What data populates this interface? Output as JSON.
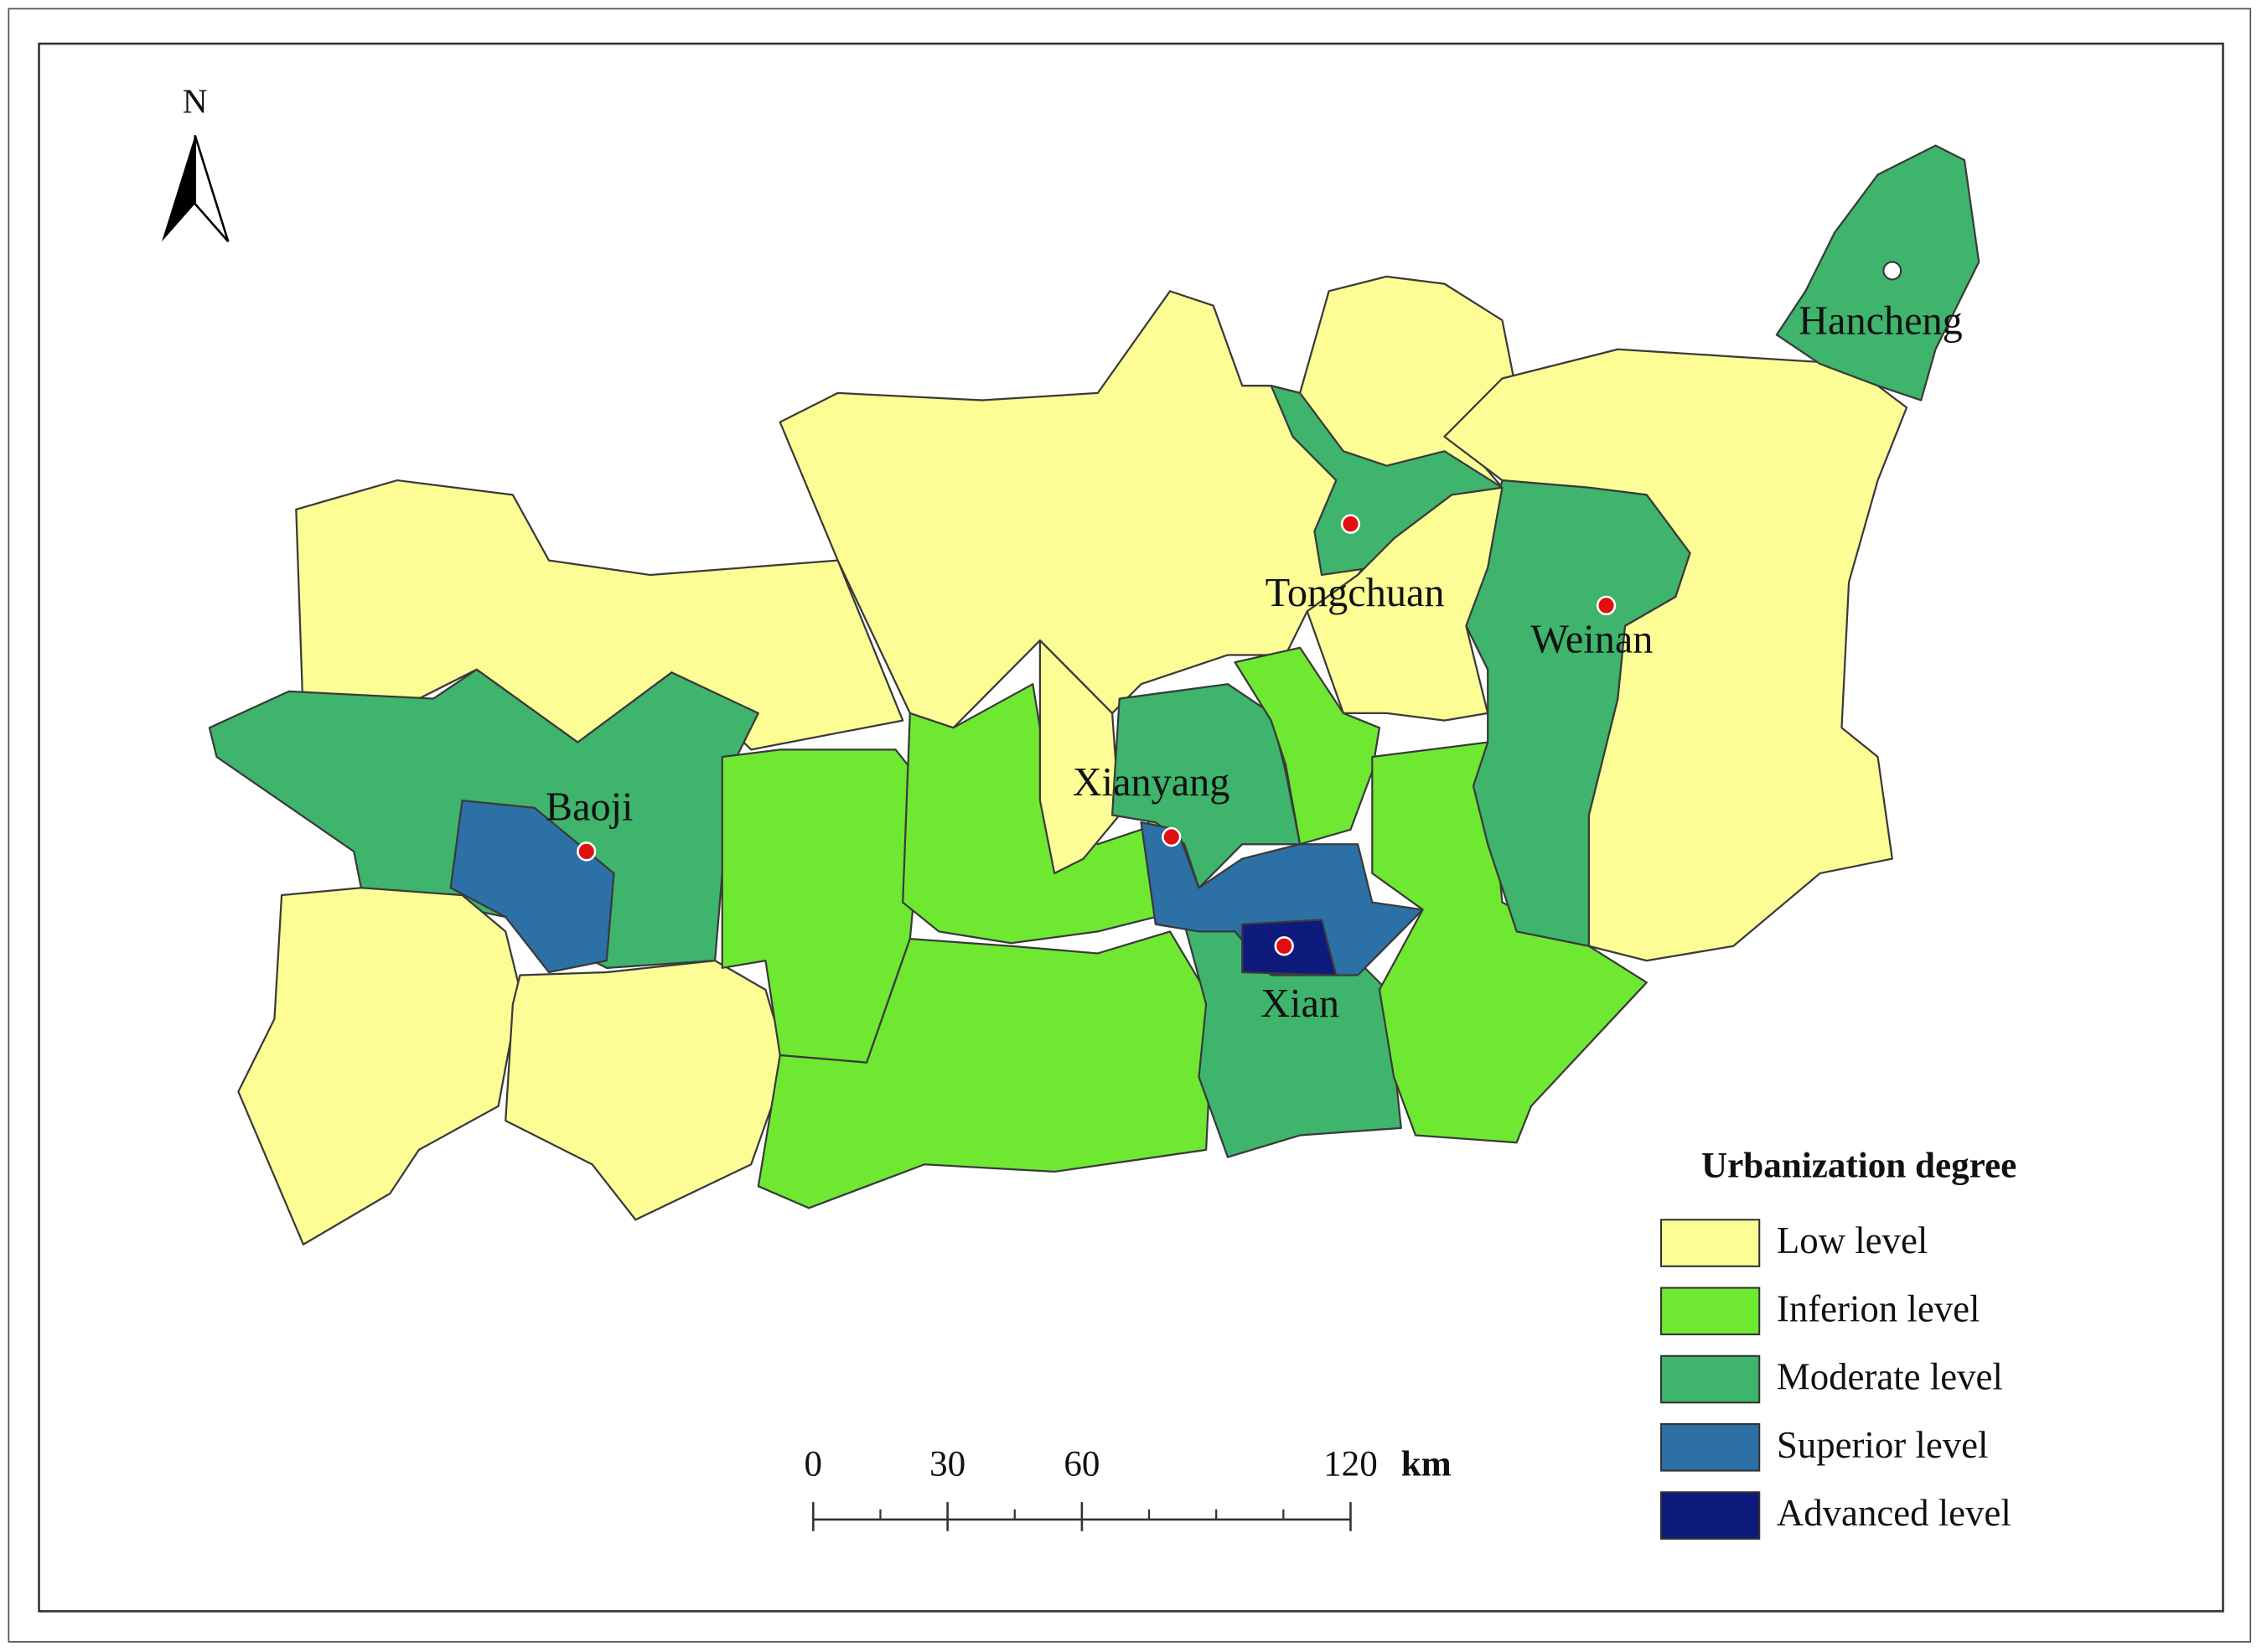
{
  "north_arrow": {
    "label": "N"
  },
  "cities": [
    {
      "name": "Baoji"
    },
    {
      "name": "Xianyang"
    },
    {
      "name": "Tongchuan"
    },
    {
      "name": "Weinan"
    },
    {
      "name": "Xian"
    },
    {
      "name": "Hancheng"
    }
  ],
  "legend": {
    "title": "Urbanization degree",
    "items": [
      {
        "label": "Low level",
        "color": "#fdfd96"
      },
      {
        "label": "Inferion level",
        "color": "#6fe832"
      },
      {
        "label": "Moderate level",
        "color": "#3eb46c"
      },
      {
        "label": "Superior level",
        "color": "#2c70a6"
      },
      {
        "label": "Advanced level",
        "color": "#0e1a7c"
      }
    ]
  },
  "scale_bar": {
    "ticks": [
      0,
      30,
      60,
      120
    ],
    "unit": "km"
  }
}
